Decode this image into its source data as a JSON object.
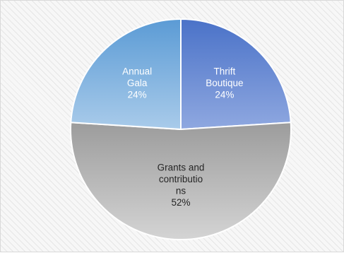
{
  "chart_data": {
    "type": "pie",
    "title": "",
    "slices": [
      {
        "name": "Thrift Boutique",
        "value": 24,
        "label_lines": [
          "Thrift",
          "Boutique",
          "24%"
        ],
        "colors": [
          "#4a72c8",
          "#8fa8e0"
        ],
        "text_color": "#ffffff"
      },
      {
        "name": "Grants and contributions",
        "value": 52,
        "label_lines": [
          "Grants and",
          "contributio",
          "ns",
          "52%"
        ],
        "colors": [
          "#9c9c9c",
          "#d4d4d4"
        ],
        "text_color": "#262626"
      },
      {
        "name": "Annual Gala",
        "value": 24,
        "label_lines": [
          "Annual",
          "Gala",
          "24%"
        ],
        "colors": [
          "#5b9bd5",
          "#a9cbea"
        ],
        "text_color": "#ffffff"
      }
    ],
    "start_angle_deg": 0,
    "direction": "clockwise",
    "legend": "none",
    "data_labels": "inside"
  }
}
